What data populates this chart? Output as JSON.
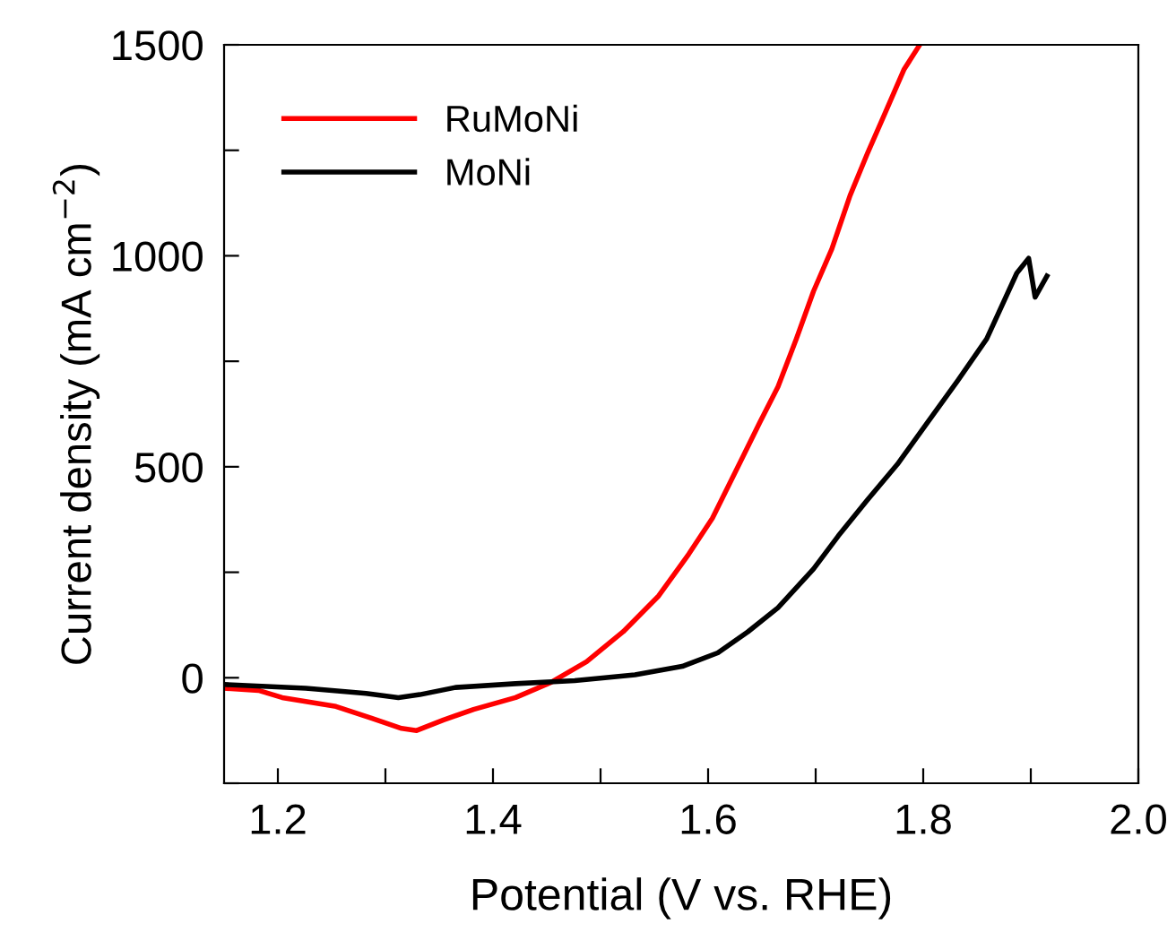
{
  "chart_data": {
    "type": "line",
    "xlabel": "Potential (V vs. RHE)",
    "ylabel": "Current density (mA cm$^{−2}$)",
    "xlim": [
      1.15,
      2.0
    ],
    "ylim": [
      -250,
      1500
    ],
    "xticks": [
      1.2,
      {
        "value": 1.3,
        "label": null
      },
      1.4,
      {
        "value": 1.5,
        "label": null
      },
      1.6,
      {
        "value": 1.7,
        "label": null
      },
      1.8,
      {
        "value": 1.9,
        "label": null
      },
      {
        "value": 2.0,
        "label": "2.0"
      }
    ],
    "yticks": [
      {
        "value": -250,
        "label": null
      },
      0,
      {
        "value": 250,
        "label": null
      },
      500,
      {
        "value": 750,
        "label": null
      },
      1000,
      {
        "value": 1250,
        "label": null
      },
      1500
    ],
    "legend": "top left",
    "grid": false,
    "marker": "none",
    "line_style": "solid",
    "series": [
      {
        "name": "RuMoNi",
        "color": "#ff0000",
        "x": [
          1.15,
          1.182,
          1.204,
          1.254,
          1.287,
          1.315,
          1.329,
          1.354,
          1.382,
          1.421,
          1.454,
          1.487,
          1.521,
          1.554,
          1.582,
          1.604,
          1.626,
          1.648,
          1.665,
          1.682,
          1.698,
          1.715,
          1.732,
          1.748,
          1.765,
          1.782,
          1.796
        ],
        "values": [
          -25,
          -30,
          -47,
          -68,
          -96,
          -120,
          -125,
          -100,
          -75,
          -47,
          -11,
          38,
          109,
          194,
          293,
          378,
          491,
          605,
          690,
          803,
          916,
          1016,
          1143,
          1242,
          1341,
          1441,
          1497
        ]
      },
      {
        "name": "MoNi",
        "color": "#000000",
        "x": [
          1.15,
          1.226,
          1.282,
          1.312,
          1.332,
          1.365,
          1.421,
          1.476,
          1.532,
          1.576,
          1.609,
          1.637,
          1.665,
          1.698,
          1.721,
          1.748,
          1.776,
          1.804,
          1.832,
          1.859,
          1.887,
          1.898,
          1.904,
          1.915
        ],
        "values": [
          -16,
          -25,
          -37,
          -47,
          -40,
          -23,
          -14,
          -7,
          7,
          27,
          59,
          109,
          166,
          258,
          336,
          421,
          506,
          605,
          704,
          803,
          959,
          994,
          902,
          952
        ]
      }
    ]
  }
}
